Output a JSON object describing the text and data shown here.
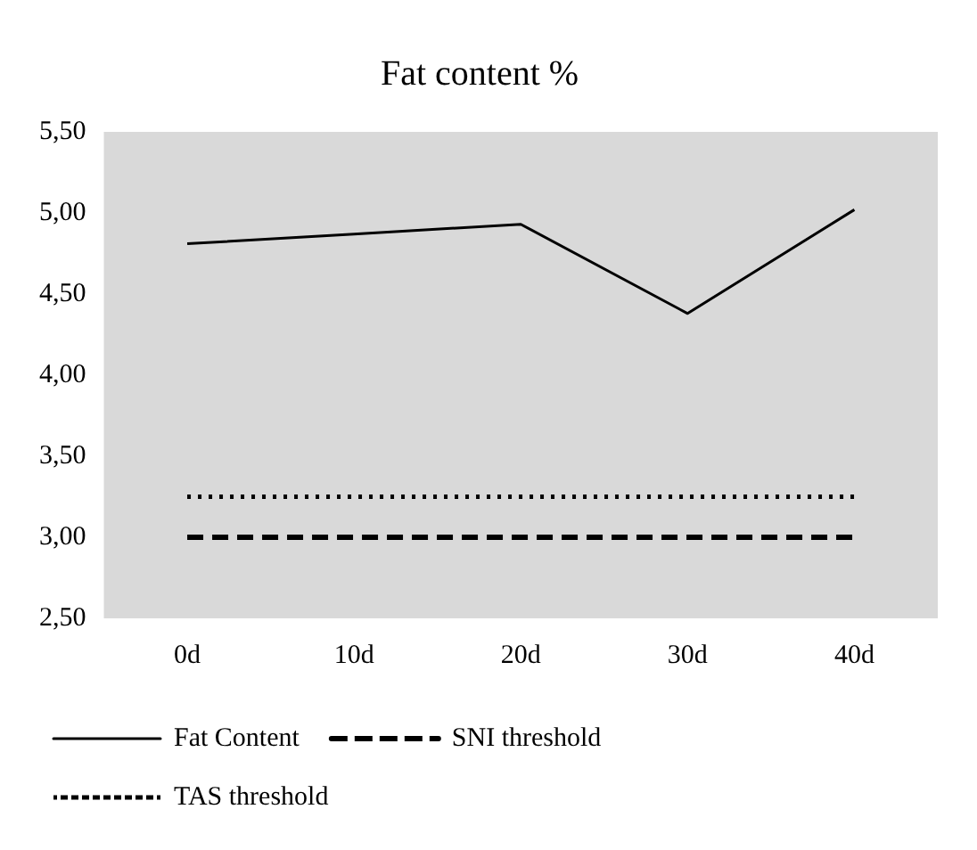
{
  "chart_data": {
    "type": "line",
    "title": "Fat content %",
    "categories": [
      "0d",
      "10d",
      "20d",
      "30d",
      "40d"
    ],
    "series": [
      {
        "name": "Fat Content",
        "color": "#000000",
        "line_style": "solid",
        "values": [
          4.81,
          4.87,
          4.93,
          4.38,
          5.02
        ]
      },
      {
        "name": "SNI threshold",
        "color": "#000000",
        "line_style": "dashed",
        "values": [
          3.0,
          3.0,
          3.0,
          3.0,
          3.0
        ]
      },
      {
        "name": "TAS threshold",
        "color": "#000000",
        "line_style": "dotted",
        "values": [
          3.25,
          3.25,
          3.25,
          3.25,
          3.25
        ]
      }
    ],
    "ylim": [
      2.5,
      5.5
    ],
    "yticks": [
      {
        "value": 2.5,
        "label": "2,50"
      },
      {
        "value": 3,
        "label": "3,00"
      },
      {
        "value": 3.5,
        "label": "3,50"
      },
      {
        "value": 4,
        "label": "4,00"
      },
      {
        "value": 4.5,
        "label": "4,50"
      },
      {
        "value": 5,
        "label": "5,00"
      },
      {
        "value": 5.5,
        "label": "5,50"
      }
    ],
    "grid": false,
    "legend": "bottom",
    "marker": "none"
  }
}
